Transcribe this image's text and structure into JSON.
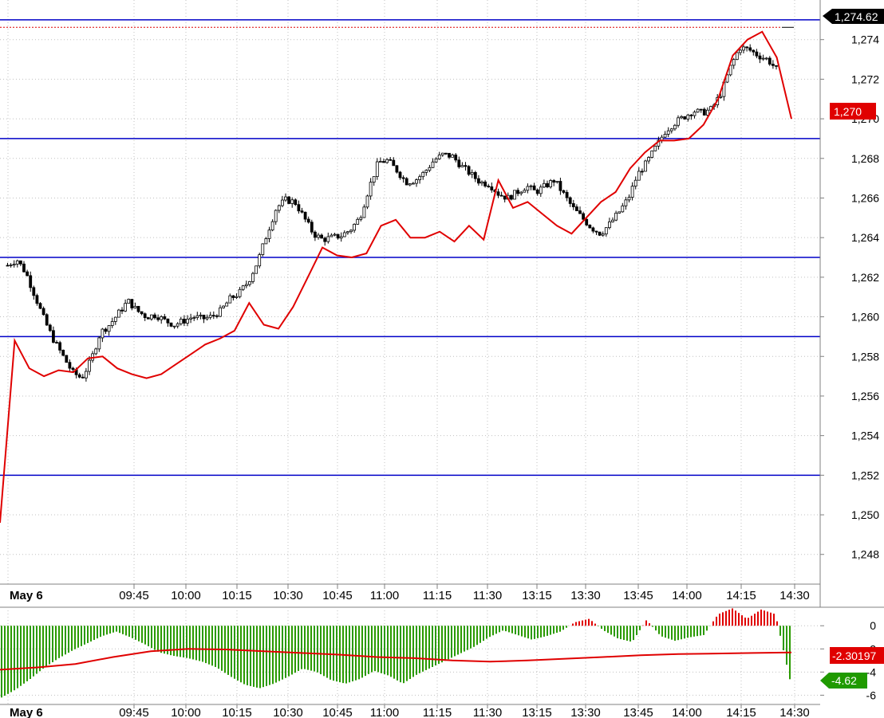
{
  "chart_data": [
    {
      "type": "candlestick",
      "title": "",
      "date_label": "May 6",
      "time_ticks": [
        "09:45",
        "10:00",
        "10:15",
        "10:30",
        "10:45",
        "11:00",
        "11:15",
        "11:30",
        "13:15",
        "13:30",
        "13:45",
        "14:00",
        "14:15",
        "14:30"
      ],
      "ylim": [
        1246.5,
        1276
      ],
      "y_ticks": [
        "1,248",
        "1,250",
        "1,252",
        "1,254",
        "1,256",
        "1,258",
        "1,260",
        "1,262",
        "1,264",
        "1,266",
        "1,268",
        "1,270",
        "1,272",
        "1,274"
      ],
      "y_tick_values": [
        1248,
        1250,
        1252,
        1254,
        1256,
        1258,
        1260,
        1262,
        1264,
        1266,
        1268,
        1270,
        1272,
        1274
      ],
      "grid": true,
      "horizontal_lines": [
        1275.0,
        1269.0,
        1263.0,
        1259.0,
        1252.0
      ],
      "last_price_label": "1,274.62",
      "last_price_value": 1274.62,
      "red_line_label": "1,270",
      "red_line_last_value": 1270.0,
      "candle_close_path": [
        1262.6,
        1262.9,
        1262.2,
        1261.0,
        1259.8,
        1258.8,
        1258.0,
        1257.2,
        1256.9,
        1257.8,
        1259.2,
        1259.6,
        1260.2,
        1260.8,
        1260.3,
        1260.0,
        1260.1,
        1259.8,
        1259.6,
        1259.8,
        1260.0,
        1259.9,
        1260.0,
        1260.3,
        1260.9,
        1261.2,
        1261.8,
        1262.8,
        1264.2,
        1265.5,
        1265.9,
        1265.8,
        1265.0,
        1264.2,
        1263.9,
        1264.0,
        1264.1,
        1264.4,
        1265.0,
        1266.5,
        1267.8,
        1267.9,
        1267.4,
        1266.8,
        1266.9,
        1267.3,
        1267.9,
        1268.2,
        1268.1,
        1267.6,
        1267.2,
        1266.8,
        1266.7,
        1266.2,
        1266.0,
        1266.3,
        1266.6,
        1266.3,
        1266.6,
        1266.9,
        1266.2,
        1265.5,
        1265.0,
        1264.5,
        1264.2,
        1264.7,
        1265.3,
        1266.0,
        1267.2,
        1267.8,
        1268.6,
        1269.4,
        1269.8,
        1270.1,
        1270.4,
        1270.3,
        1270.5,
        1271.3,
        1272.6,
        1273.6,
        1273.5,
        1273.2,
        1273.0,
        1272.5
      ],
      "red_line_path": [
        1249.6,
        1258.8,
        1257.4,
        1257.0,
        1257.3,
        1257.2,
        1257.9,
        1258.0,
        1257.4,
        1257.1,
        1256.9,
        1257.1,
        1257.6,
        1258.1,
        1258.6,
        1258.9,
        1259.3,
        1260.7,
        1259.6,
        1259.4,
        1260.5,
        1262.0,
        1263.5,
        1263.1,
        1263.0,
        1263.2,
        1264.6,
        1264.9,
        1264.0,
        1264.0,
        1264.3,
        1263.8,
        1264.6,
        1263.9,
        1266.9,
        1265.5,
        1265.8,
        1265.2,
        1264.6,
        1264.2,
        1265.0,
        1265.8,
        1266.3,
        1267.5,
        1268.3,
        1268.9,
        1268.9,
        1269.0,
        1269.7,
        1271.0,
        1273.2,
        1274.0,
        1274.4,
        1273.1,
        1270.0
      ]
    },
    {
      "type": "bar",
      "title": "",
      "date_label": "May 6",
      "time_ticks": [
        "09:45",
        "10:00",
        "10:15",
        "10:30",
        "10:45",
        "11:00",
        "11:15",
        "11:30",
        "13:15",
        "13:30",
        "13:45",
        "14:00",
        "14:15",
        "14:30"
      ],
      "ylim": [
        -6.8,
        1.6
      ],
      "y_ticks": [
        "0",
        "-2",
        "-4",
        "-6"
      ],
      "y_tick_values": [
        0,
        -2,
        -4,
        -6
      ],
      "grid": true,
      "histogram_path": [
        -6.2,
        -5.5,
        -4.6,
        -3.6,
        -2.8,
        -2.1,
        -1.5,
        -0.9,
        -0.5,
        -1.0,
        -1.6,
        -2.3,
        -2.6,
        -2.8,
        -3.1,
        -3.6,
        -4.4,
        -5.1,
        -5.4,
        -5.0,
        -4.4,
        -3.7,
        -4.0,
        -4.7,
        -5.0,
        -4.6,
        -3.9,
        -4.3,
        -5.0,
        -4.2,
        -3.6,
        -3.0,
        -2.4,
        -1.8,
        -1.0,
        -0.4,
        -0.8,
        -1.2,
        -0.9,
        -0.5,
        0.3,
        0.6,
        -0.4,
        -1.1,
        -1.4,
        0.5,
        -0.9,
        -1.3,
        -1.0,
        -0.8,
        1.0,
        1.5,
        0.6,
        1.4,
        1.0,
        -4.62
      ],
      "signal_path": [
        -3.8,
        -3.6,
        -3.3,
        -2.7,
        -2.2,
        -2.0,
        -2.05,
        -2.2,
        -2.35,
        -2.5,
        -2.7,
        -2.8,
        -3.0,
        -3.1,
        -3.0,
        -2.85,
        -2.7,
        -2.55,
        -2.45,
        -2.4,
        -2.35,
        -2.301
      ],
      "histogram_last_label": "-4.62",
      "histogram_last_value": -4.62,
      "signal_last_label": "-2.30197",
      "signal_last_value": -2.30197
    }
  ],
  "colors": {
    "up_candle": "#ffffff",
    "down_candle": "#000000",
    "candle_outline": "#000000",
    "horizontal_line": "#0000c8",
    "red_line": "#e00000",
    "histogram_positive": "#e00000",
    "histogram_negative": "#2a9a00",
    "grid": "#c0c0c0",
    "price_tag": "#000000",
    "red_tag": "#e00000",
    "green_tag": "#1f9a00"
  }
}
